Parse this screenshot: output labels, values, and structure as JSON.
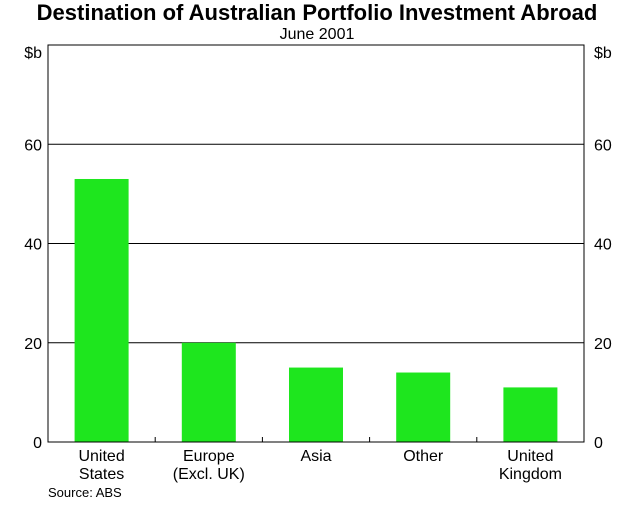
{
  "chart_data": {
    "type": "bar",
    "title": "Destination of Australian Portfolio Investment Abroad",
    "subtitle": "June 2001",
    "y_unit_left": "$b",
    "y_unit_right": "$b",
    "ylim": [
      0,
      80
    ],
    "yticks": [
      0,
      20,
      40,
      60
    ],
    "grid": true,
    "categories": [
      [
        "United",
        "States"
      ],
      [
        "Europe",
        "(Excl. UK)"
      ],
      [
        "Asia"
      ],
      [
        "Other"
      ],
      [
        "United",
        "Kingdom"
      ]
    ],
    "values": [
      53,
      20,
      15,
      14,
      11
    ],
    "bar_color": "#1ee61e",
    "source": "Source: ABS"
  }
}
